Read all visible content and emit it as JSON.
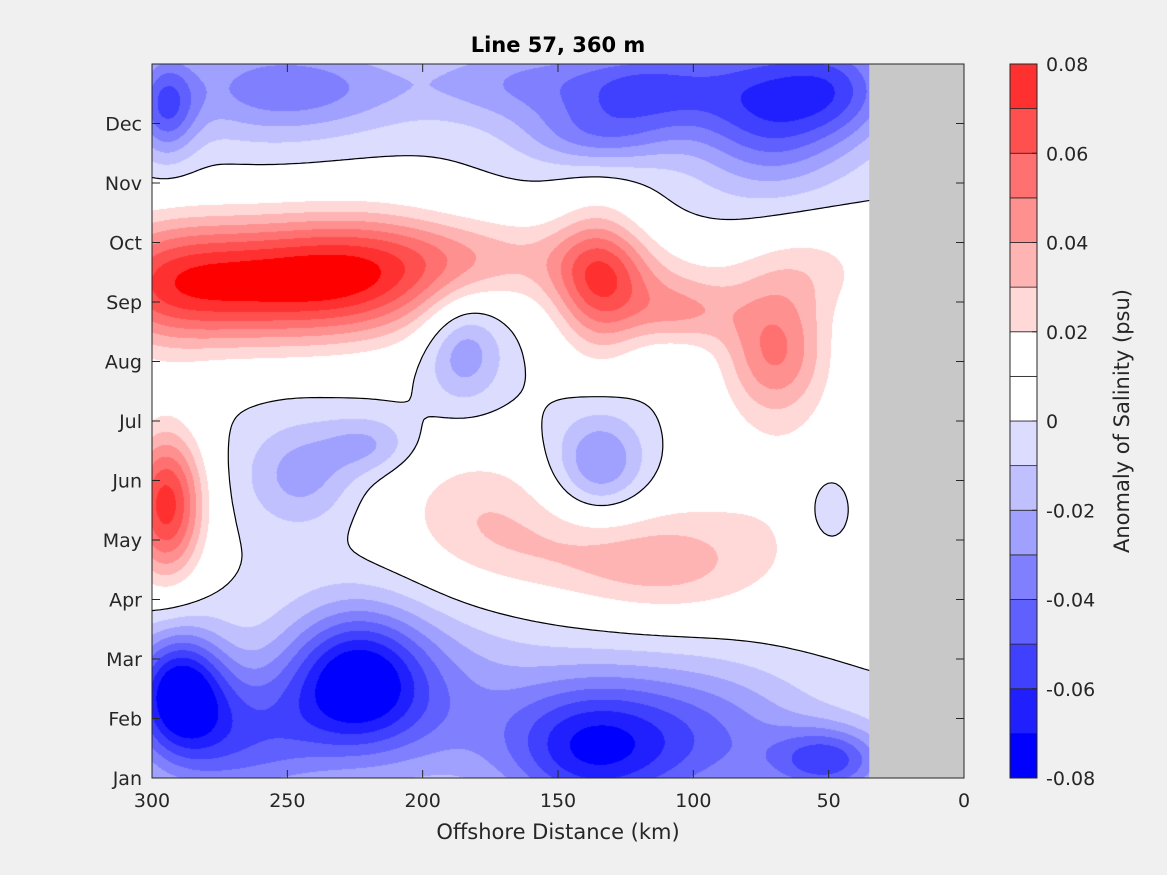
{
  "chart_data": {
    "type": "heatmap",
    "subtype": "filled-contour",
    "title": "Line 57, 360 m",
    "xlabel": "Offshore Distance (km)",
    "ylabel": "",
    "x_reversed": true,
    "xlim": [
      300,
      0
    ],
    "xticks": [
      "300",
      "250",
      "200",
      "150",
      "100",
      "50",
      "0"
    ],
    "xtick_values": [
      300,
      250,
      200,
      150,
      100,
      50,
      0
    ],
    "ylim": [
      0,
      12
    ],
    "yticks": [
      "Jan",
      "Feb",
      "Mar",
      "Apr",
      "May",
      "Jun",
      "Jul",
      "Aug",
      "Sep",
      "Oct",
      "Nov",
      "Dec"
    ],
    "ytick_values": [
      0,
      1,
      2,
      3,
      4,
      5,
      6,
      7,
      8,
      9,
      10,
      11
    ],
    "no_data_region": {
      "x_from": 35,
      "x_to": 0,
      "color": "#c8c8c8"
    },
    "zero_contour_color": "#000000",
    "colorbar": {
      "label": "Anomaly of Salinity (psu)",
      "min": -0.08,
      "max": 0.08,
      "tick_labels": [
        "0.08",
        "0.06",
        "0.04",
        "0.02",
        "0",
        "-0.02",
        "-0.04",
        "-0.06",
        "-0.08"
      ],
      "tick_values": [
        0.08,
        0.06,
        0.04,
        0.02,
        0,
        -0.02,
        -0.04,
        -0.06,
        -0.08
      ],
      "levels": [
        -0.08,
        -0.07,
        -0.06,
        -0.05,
        -0.04,
        -0.03,
        -0.02,
        -0.01,
        0,
        0.01,
        0.02,
        0.03,
        0.04,
        0.05,
        0.06,
        0.07,
        0.08
      ],
      "colors": [
        "#0000ff",
        "#2020ff",
        "#4040ff",
        "#6060ff",
        "#8080ff",
        "#a0a0ff",
        "#c0c0ff",
        "#dcdcff",
        "#ffffff",
        "#ffffff",
        "#ffd8d8",
        "#ffb4b4",
        "#ff9090",
        "#ff7070",
        "#ff5050",
        "#ff3030",
        "#ff0000"
      ]
    },
    "features": [
      {
        "x": 295,
        "y": 11.3,
        "value": -0.045,
        "sx": 8,
        "sy": 0.6
      },
      {
        "x": 260,
        "y": 11.6,
        "value": -0.03,
        "sx": 25,
        "sy": 0.6
      },
      {
        "x": 230,
        "y": 11.6,
        "value": -0.015,
        "sx": 22,
        "sy": 0.5
      },
      {
        "x": 160,
        "y": 11.7,
        "value": -0.03,
        "sx": 30,
        "sy": 0.5
      },
      {
        "x": 115,
        "y": 11.6,
        "value": -0.04,
        "sx": 20,
        "sy": 0.5
      },
      {
        "x": 72,
        "y": 11.3,
        "value": -0.055,
        "sx": 20,
        "sy": 0.9
      },
      {
        "x": 45,
        "y": 11.6,
        "value": -0.035,
        "sx": 15,
        "sy": 0.6
      },
      {
        "x": 135,
        "y": 10.8,
        "value": -0.03,
        "sx": 20,
        "sy": 0.4
      },
      {
        "x": 265,
        "y": 8.35,
        "value": 0.07,
        "sx": 30,
        "sy": 0.75
      },
      {
        "x": 220,
        "y": 8.45,
        "value": 0.055,
        "sx": 25,
        "sy": 0.75
      },
      {
        "x": 300,
        "y": 8.3,
        "value": 0.035,
        "sx": 20,
        "sy": 0.8
      },
      {
        "x": 175,
        "y": 8.8,
        "value": 0.025,
        "sx": 30,
        "sy": 0.5
      },
      {
        "x": 135,
        "y": 8.3,
        "value": 0.05,
        "sx": 12,
        "sy": 0.9
      },
      {
        "x": 120,
        "y": 8.4,
        "value": 0.02,
        "sx": 25,
        "sy": 0.5
      },
      {
        "x": 105,
        "y": 7.8,
        "value": 0.03,
        "sx": 15,
        "sy": 0.4
      },
      {
        "x": 70,
        "y": 7.2,
        "value": 0.048,
        "sx": 14,
        "sy": 0.8
      },
      {
        "x": 55,
        "y": 8.6,
        "value": 0.02,
        "sx": 20,
        "sy": 0.6
      },
      {
        "x": 185,
        "y": 7.2,
        "value": -0.03,
        "sx": 10,
        "sy": 0.6
      },
      {
        "x": 295,
        "y": 4.6,
        "value": 0.075,
        "sx": 10,
        "sy": 0.9
      },
      {
        "x": 245,
        "y": 5.1,
        "value": -0.025,
        "sx": 14,
        "sy": 0.6
      },
      {
        "x": 220,
        "y": 5.6,
        "value": -0.022,
        "sx": 12,
        "sy": 0.35
      },
      {
        "x": 180,
        "y": 4.6,
        "value": 0.025,
        "sx": 25,
        "sy": 0.8
      },
      {
        "x": 110,
        "y": 3.6,
        "value": 0.025,
        "sx": 25,
        "sy": 0.7
      },
      {
        "x": 150,
        "y": 3.7,
        "value": 0.018,
        "sx": 30,
        "sy": 0.6
      },
      {
        "x": 135,
        "y": 5.3,
        "value": -0.035,
        "sx": 12,
        "sy": 0.6
      },
      {
        "x": 65,
        "y": 4.5,
        "value": 0.015,
        "sx": 30,
        "sy": 1.5
      },
      {
        "x": 50,
        "y": 4.5,
        "value": -0.02,
        "sx": 7,
        "sy": 0.5
      },
      {
        "x": 290,
        "y": 1.5,
        "value": -0.07,
        "sx": 12,
        "sy": 0.7
      },
      {
        "x": 225,
        "y": 1.7,
        "value": -0.065,
        "sx": 18,
        "sy": 0.8
      },
      {
        "x": 270,
        "y": 0.7,
        "value": -0.045,
        "sx": 25,
        "sy": 0.8
      },
      {
        "x": 140,
        "y": 0.5,
        "value": -0.055,
        "sx": 22,
        "sy": 0.8
      },
      {
        "x": 100,
        "y": 0.7,
        "value": -0.04,
        "sx": 30,
        "sy": 0.9
      },
      {
        "x": 50,
        "y": 0.3,
        "value": -0.05,
        "sx": 15,
        "sy": 0.4
      },
      {
        "x": 200,
        "y": 1.2,
        "value": -0.03,
        "sx": 30,
        "sy": 1.0
      }
    ]
  }
}
